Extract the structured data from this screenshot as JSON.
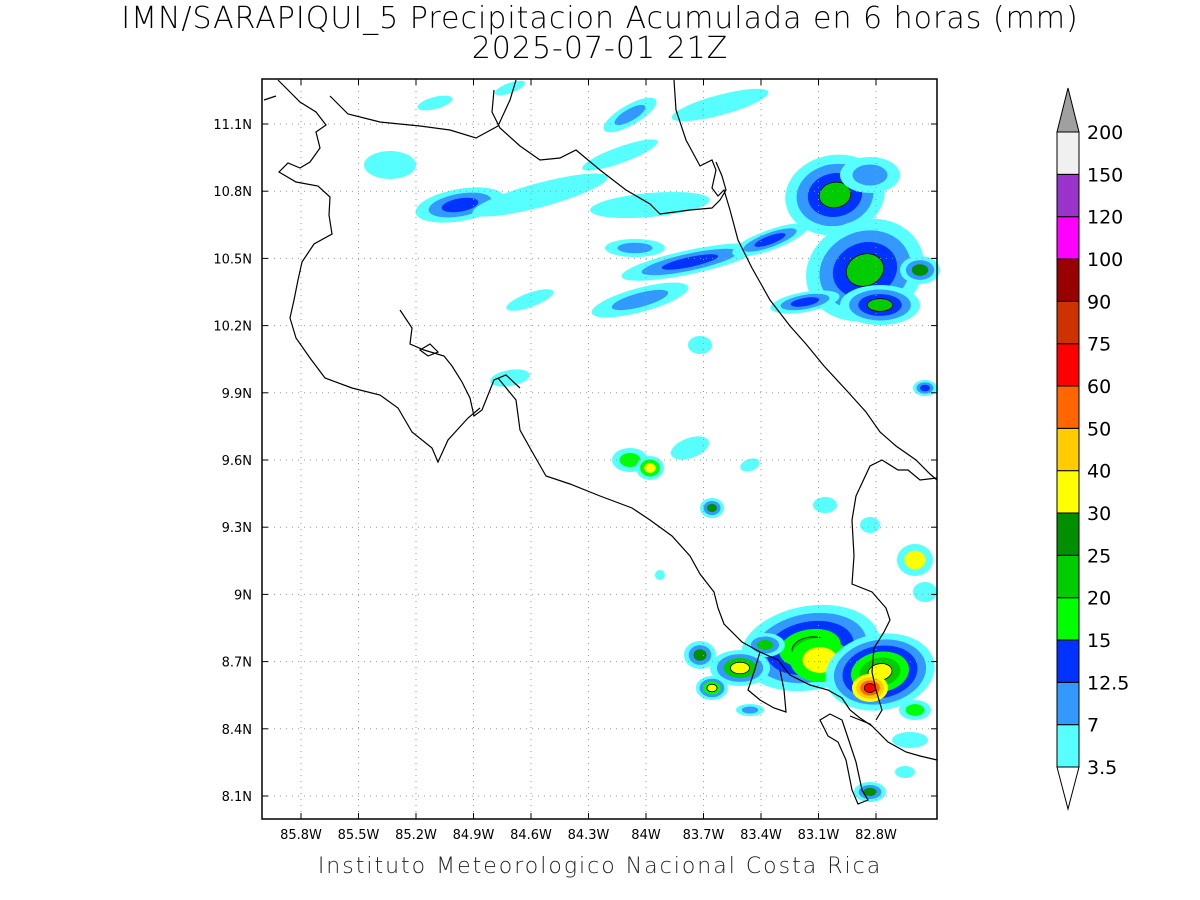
{
  "title": {
    "line1": "IMN/SARAPIQUI_5 Precipitacion Acumulada en 6 horas (mm)",
    "line2": "2025-07-01 21Z"
  },
  "map": {
    "lat_ticks": [
      "11.1N",
      "10.8N",
      "10.5N",
      "10.2N",
      "9.9N",
      "9.6N",
      "9.3N",
      "9N",
      "8.7N",
      "8.4N",
      "8.1N"
    ],
    "lon_ticks": [
      "85.8W",
      "85.5W",
      "85.2W",
      "84.9W",
      "84.6W",
      "84.3W",
      "84W",
      "83.7W",
      "83.4W",
      "83.1W",
      "82.8W"
    ],
    "grid": "dotted"
  },
  "colorbar": {
    "labels": [
      "200",
      "150",
      "120",
      "100",
      "90",
      "75",
      "60",
      "50",
      "40",
      "30",
      "25",
      "20",
      "15",
      "12.5",
      "7",
      "3.5"
    ],
    "colors": [
      "#ffffff",
      "#58ffff",
      "#3399ff",
      "#0033ff",
      "#00ff00",
      "#00cc00",
      "#008f00",
      "#ffff00",
      "#ffcc00",
      "#ff6600",
      "#ff0000",
      "#cc3300",
      "#990000",
      "#ff00ff",
      "#9933cc",
      "#f0f0f0",
      "#a0a0a0"
    ]
  },
  "footer": "Instituto Meteorologico Nacional Costa Rica"
}
